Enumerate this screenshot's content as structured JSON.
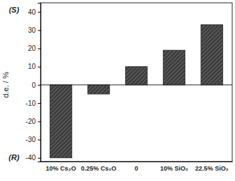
{
  "chart_data": {
    "type": "bar",
    "y_label": "d.e. / %",
    "annotations": [
      "(S)",
      "(R)"
    ],
    "categories": [
      "10% Cs₂O",
      "0.25% Cs₂O",
      "0",
      "10% SiO₂",
      "22.5% SiO₂"
    ],
    "values": [
      -40,
      -5,
      10,
      19,
      33
    ],
    "color": "#3c3c3c",
    "ylim": [
      -42,
      45
    ],
    "yticks": [
      -40,
      -30,
      -20,
      -10,
      0,
      10,
      20,
      30,
      40
    ],
    "grid": false
  }
}
